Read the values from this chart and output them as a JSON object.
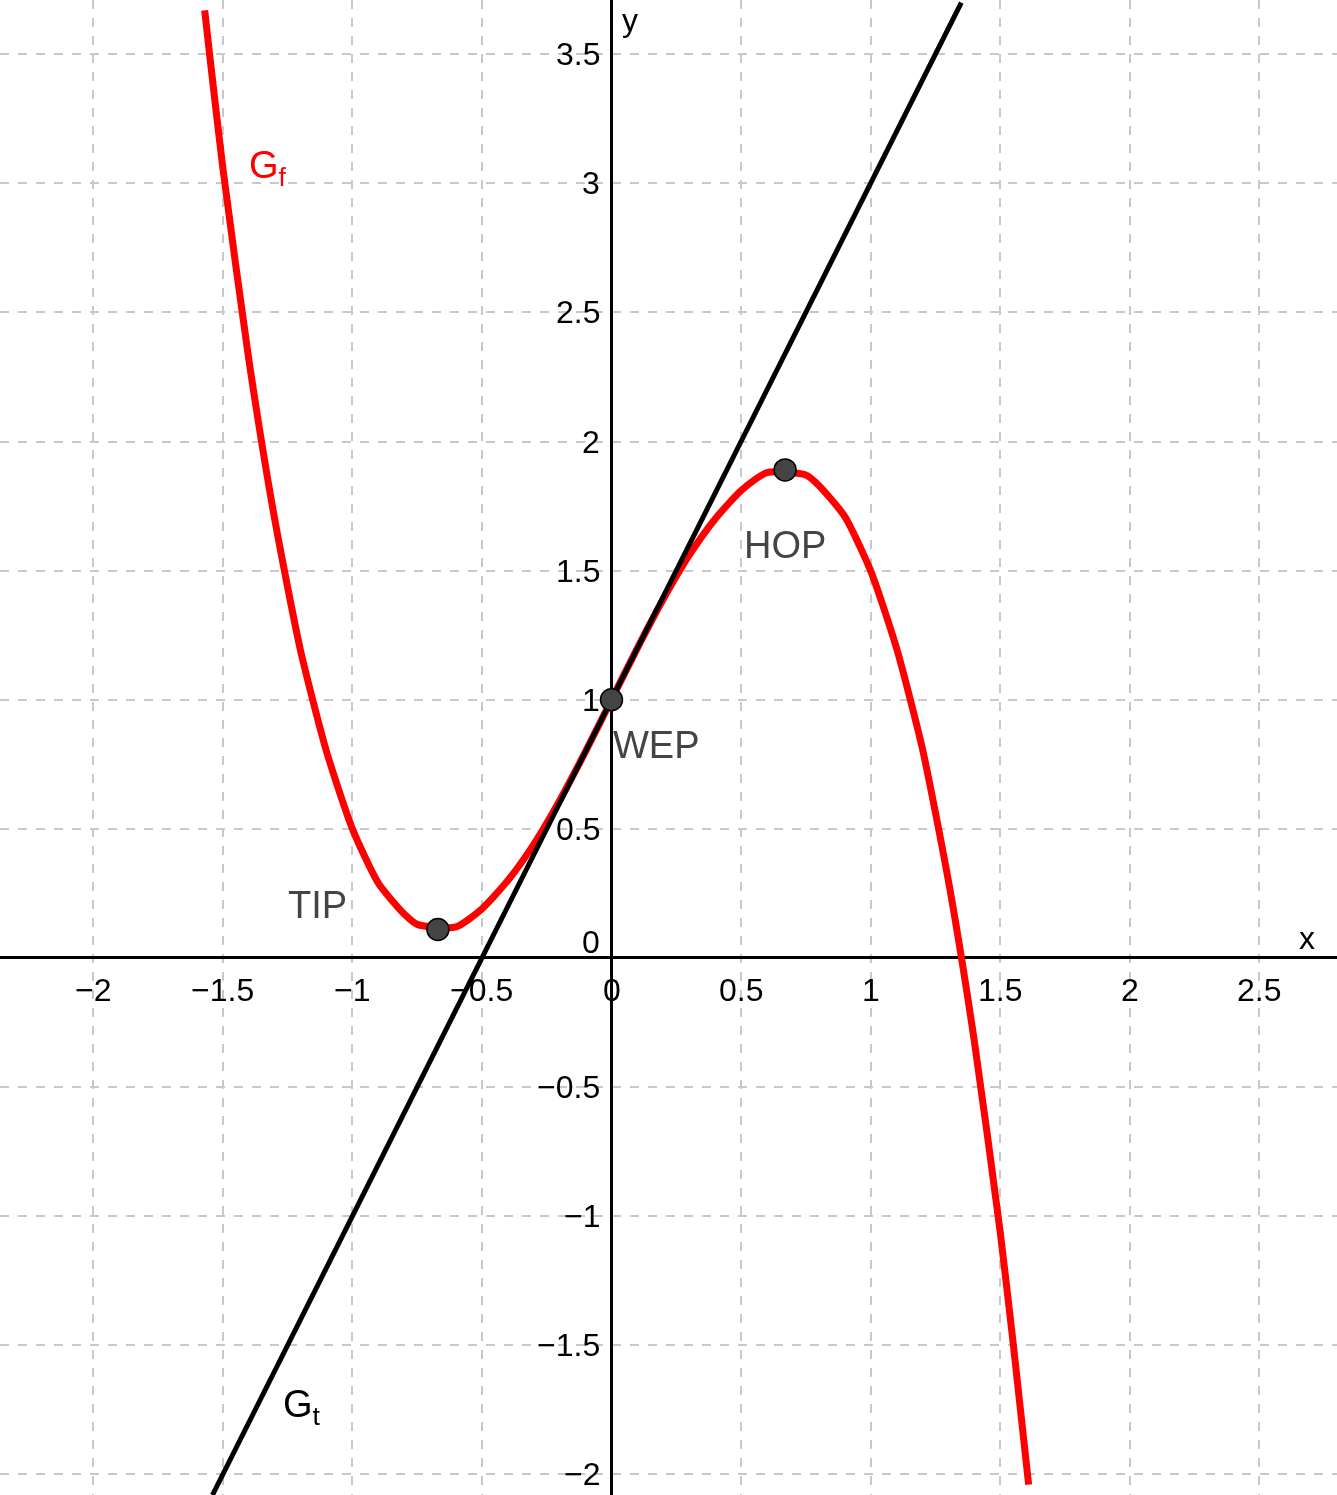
{
  "chart_data": {
    "type": "line",
    "xlabel": "x",
    "ylabel": "y",
    "xlim": [
      -2.36,
      2.8
    ],
    "ylim": [
      -2.08,
      3.71
    ],
    "xticks": [
      {
        "value": -2,
        "label": "−2"
      },
      {
        "value": -1.5,
        "label": "−1.5"
      },
      {
        "value": -1,
        "label": "−1"
      },
      {
        "value": -0.5,
        "label": "−0.5"
      },
      0,
      0.5,
      1,
      1.5,
      2,
      2.5
    ],
    "yticks": [
      {
        "value": -2,
        "label": "−2"
      },
      {
        "value": -1.5,
        "label": "−1.5"
      },
      {
        "value": -1,
        "label": "−1"
      },
      {
        "value": -0.5,
        "label": "−0.5"
      },
      0,
      0.5,
      1,
      1.5,
      2,
      2.5,
      3,
      3.5
    ],
    "grid": true,
    "line_style": "solid",
    "series": [
      {
        "color": "#ff0000",
        "marker": "none",
        "x": [
          -1.57,
          -1.55,
          -1.5,
          -1.4,
          -1.3,
          -1.2,
          -1.1,
          -1.0,
          -0.9,
          -0.8,
          -0.75,
          -0.6,
          -0.5,
          -0.4,
          -0.3,
          -0.2,
          -0.1,
          0,
          0.1,
          0.2,
          0.3,
          0.4,
          0.5,
          0.6,
          0.75,
          0.8,
          0.9,
          1.0,
          1.1,
          1.2,
          1.3,
          1.4,
          1.5,
          1.55,
          1.61
        ],
        "values": [
          3.67,
          3.49,
          3.06,
          2.32,
          1.7,
          1.19,
          0.8,
          0.5,
          0.29,
          0.17,
          0.13,
          0.12,
          0.19,
          0.3,
          0.44,
          0.61,
          0.8,
          1,
          1.2,
          1.39,
          1.56,
          1.7,
          1.81,
          1.88,
          1.87,
          1.83,
          1.71,
          1.5,
          1.2,
          0.81,
          0.3,
          -0.32,
          -1.06,
          -1.49,
          -2.04
        ]
      },
      {
        "color": "#000000",
        "marker": "none",
        "x": [
          -1.54,
          1.35
        ],
        "values": [
          -2.08,
          3.7
        ]
      },
      {
        "type": "scatter",
        "color": "#444444",
        "marker": "circle",
        "x": [
          -0.67,
          0,
          0.67
        ],
        "values": [
          0.11,
          1,
          1.89
        ]
      }
    ],
    "annotations": [
      {
        "text": "G$_{f}$",
        "x": -1.5,
        "y": 3.06
      },
      {
        "text": "G$_{t}$",
        "x": -1.35,
        "y": -1.7
      },
      {
        "text": "TIP",
        "x": -0.67,
        "y": 0.11
      },
      {
        "text": "WEP",
        "x": 0,
        "y": 1
      },
      {
        "text": "HOP",
        "x": 0.67,
        "y": 1.89
      }
    ]
  }
}
